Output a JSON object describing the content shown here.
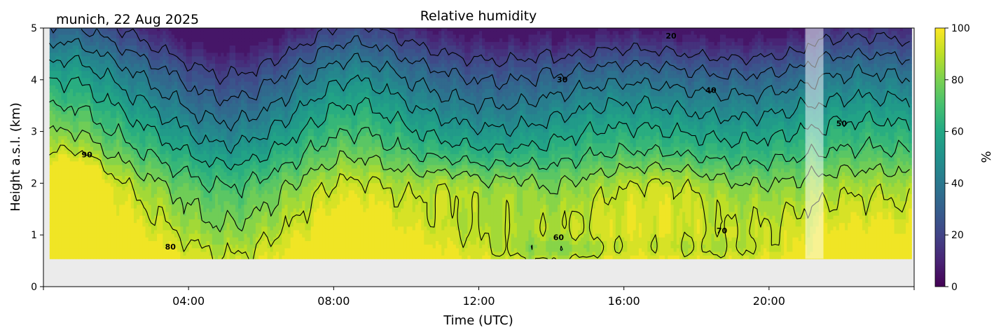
{
  "chart_data": {
    "type": "heatmap",
    "subtype": "filled-contour time-height",
    "title": "Relative humidity",
    "location_date": "munich, 22 Aug 2025",
    "xlabel": "Time (UTC)",
    "ylabel": "Height a.s.l. (km)",
    "xlim_hours": [
      0,
      24
    ],
    "ylim": [
      0,
      5
    ],
    "xticks": [
      {
        "hour": 4,
        "label": "04:00"
      },
      {
        "hour": 8,
        "label": "08:00"
      },
      {
        "hour": 12,
        "label": "12:00"
      },
      {
        "hour": 16,
        "label": "16:00"
      },
      {
        "hour": 20,
        "label": "20:00"
      }
    ],
    "yticks": [
      {
        "value": 0,
        "label": "0"
      },
      {
        "value": 1,
        "label": "1"
      },
      {
        "value": 2,
        "label": "2"
      },
      {
        "value": 3,
        "label": "3"
      },
      {
        "value": 4,
        "label": "4"
      },
      {
        "value": 5,
        "label": "5"
      }
    ],
    "data_time_range_hours": [
      0.17,
      23.9
    ],
    "data_min_height_km": 0.54,
    "missing_data_interval_hours": [
      21.0,
      21.5
    ],
    "colorbar": {
      "label": "%",
      "range": [
        0,
        100
      ],
      "ticks": [
        {
          "value": 0,
          "label": "0"
        },
        {
          "value": 20,
          "label": "20"
        },
        {
          "value": 40,
          "label": "40"
        },
        {
          "value": 60,
          "label": "60"
        },
        {
          "value": 80,
          "label": "80"
        },
        {
          "value": 100,
          "label": "100"
        }
      ],
      "colormap": "viridis"
    },
    "contour_levels": [
      20,
      30,
      40,
      50,
      60,
      70,
      80,
      90
    ],
    "contour_labels": [
      {
        "text": "20",
        "hour": 17.3,
        "height_km": 4.8
      },
      {
        "text": "30",
        "hour": 14.3,
        "height_km": 3.95
      },
      {
        "text": "40",
        "hour": 18.4,
        "height_km": 3.75
      },
      {
        "text": "50",
        "hour": 22.0,
        "height_km": 3.1
      },
      {
        "text": "60",
        "hour": 14.2,
        "height_km": 0.9
      },
      {
        "text": "70",
        "hour": 18.7,
        "height_km": 1.03
      },
      {
        "text": "80",
        "hour": 3.5,
        "height_km": 0.72
      },
      {
        "text": "90",
        "hour": 1.2,
        "height_km": 2.5
      }
    ],
    "description_values": {
      "near_surface_rh": "80-95",
      "mid_level_2km_rh": "70-90",
      "upper_5km_rh": "15-40"
    },
    "colors": {
      "missing_background": "#ebebeb",
      "gap_overlay": "#ffffff"
    }
  }
}
